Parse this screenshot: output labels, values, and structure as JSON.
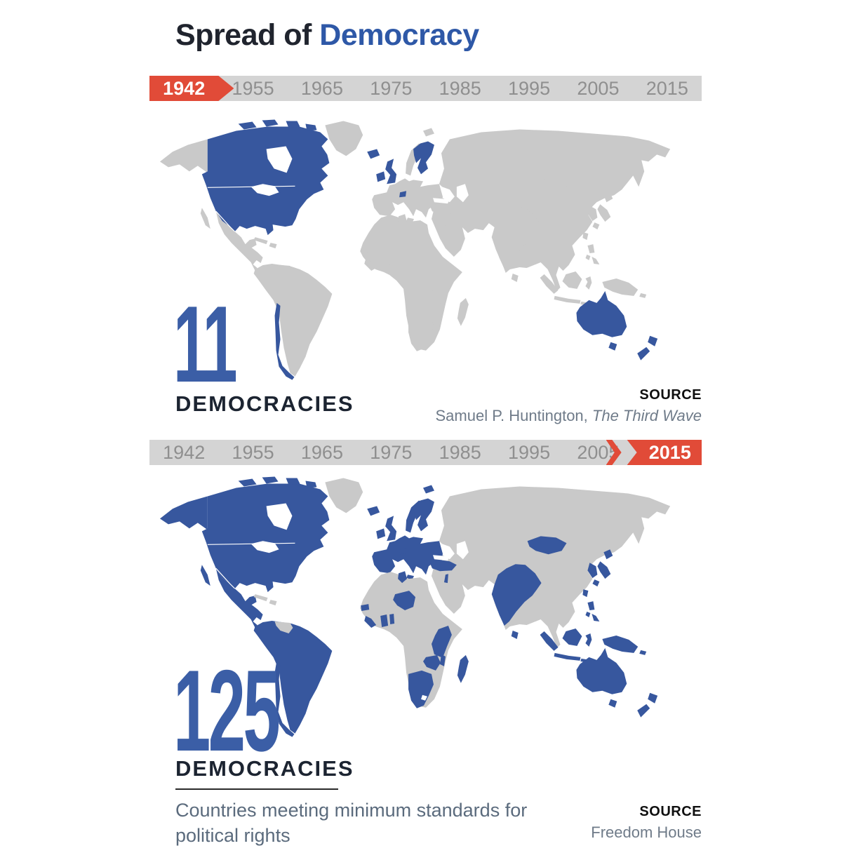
{
  "title": {
    "prefix": "Spread of",
    "highlight": "Democracy"
  },
  "timeline": {
    "years": [
      "1942",
      "1955",
      "1965",
      "1975",
      "1985",
      "1995",
      "2005",
      "2015"
    ]
  },
  "colors": {
    "democracy": "#37579E",
    "land": "#C9C9C9",
    "accent_red": "#E14B38",
    "title_dark": "#20242E",
    "title_blue": "#2E58A7",
    "number_blue": "#3B5EA6",
    "label_dark": "#1C2431",
    "subtitle_gray": "#5B6B7D",
    "source_gray": "#6F7B89",
    "bar_gray": "#D4D4D4",
    "bar_year_gray": "#8F8F8F"
  },
  "maps": [
    {
      "id": "1942",
      "active_year": "1942",
      "active_index": 0,
      "count": "11",
      "count_label": "DEMOCRACIES",
      "source": {
        "label": "SOURCE",
        "text": "Samuel P. Huntington, ",
        "italic": "The Third Wave"
      },
      "democracies": [
        "canada_us",
        "arctic_islands",
        "uk",
        "ireland",
        "iceland",
        "sweden_finland",
        "switzerland",
        "chile",
        "australia",
        "tasmania",
        "new_zealand"
      ]
    },
    {
      "id": "2015",
      "active_year": "2015",
      "active_index": 7,
      "count": "125",
      "count_label": "DEMOCRACIES",
      "subtitle": "Countries meeting minimum standards for political rights",
      "source": {
        "label": "SOURCE",
        "text": "Freedom House",
        "italic": ""
      },
      "democracies": [
        "alaska",
        "canada_us",
        "arctic_islands",
        "baja",
        "mexico_ca",
        "south_america",
        "chile",
        "iceland",
        "ireland",
        "uk",
        "norway",
        "sweden_finland",
        "svalbard",
        "europe_main",
        "switzerland",
        "turkey",
        "israel",
        "tunisia",
        "west_africa",
        "east_africa",
        "zambia",
        "southern_africa",
        "madagascar",
        "india",
        "sri_lanka",
        "mongolia",
        "korea",
        "japan",
        "taiwan",
        "philippines",
        "indonesia",
        "png",
        "australia",
        "tasmania",
        "new_zealand"
      ]
    }
  ]
}
